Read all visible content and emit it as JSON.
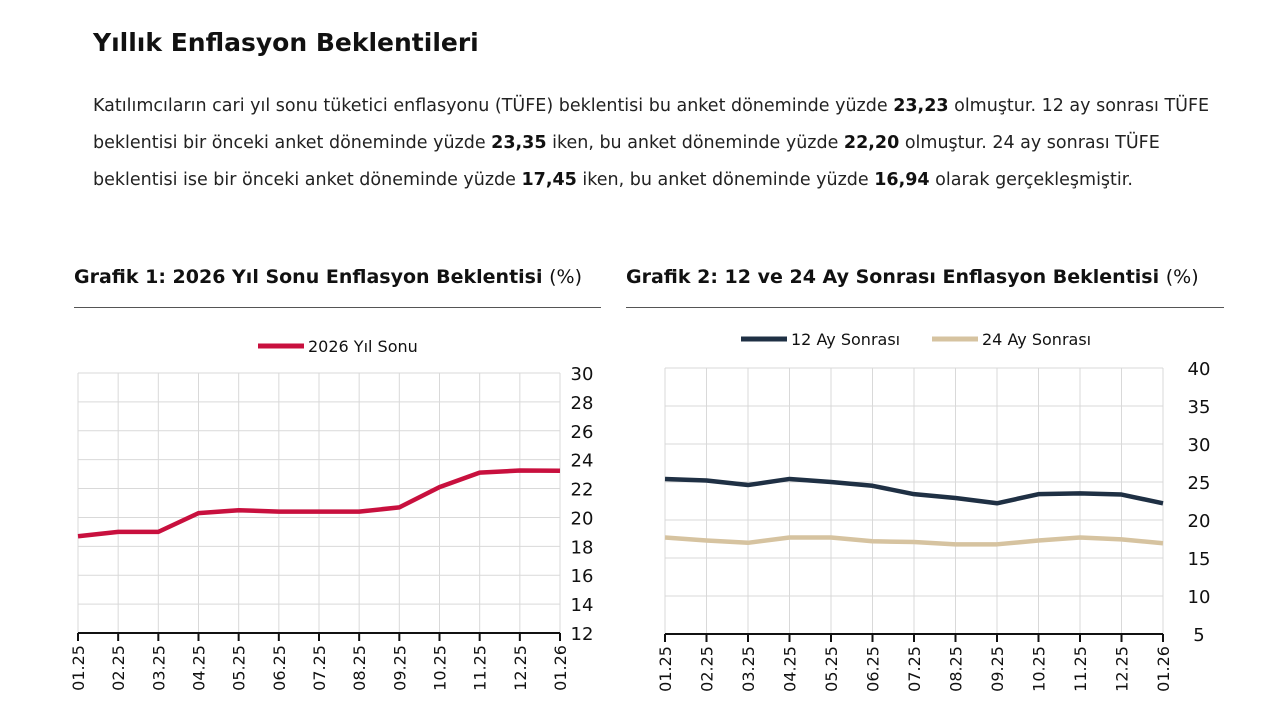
{
  "title": "Yıllık Enflasyon Beklentileri",
  "paragraph": [
    {
      "t": "Katılımcıların cari yıl sonu tüketici enflasyonu (TÜFE) beklentisi bu anket döneminde yüzde "
    },
    {
      "b": "23,23"
    },
    {
      "t": " olmuştur. 12 ay sonrası TÜFE beklentisi bir önceki anket döneminde yüzde "
    },
    {
      "b": "23,35"
    },
    {
      "t": " iken, bu anket döneminde yüzde "
    },
    {
      "b": "22,20"
    },
    {
      "t": " olmuştur. 24 ay sonrası TÜFE beklentisi ise bir önceki anket döneminde yüzde "
    },
    {
      "b": "17,45"
    },
    {
      "t": " iken, bu anket döneminde yüzde "
    },
    {
      "b": "16,94"
    },
    {
      "t": " olarak gerçekleşmiştir."
    }
  ],
  "chart_data": [
    {
      "type": "line",
      "title": "Grafik 1: 2026 Yıl Sonu Enflasyon Beklentisi",
      "unit": "(%)",
      "categories": [
        "01.25",
        "02.25",
        "03.25",
        "04.25",
        "05.25",
        "06.25",
        "07.25",
        "08.25",
        "09.25",
        "10.25",
        "11.25",
        "12.25",
        "01.26"
      ],
      "ylim": [
        12,
        30
      ],
      "yticks": [
        12,
        14,
        16,
        18,
        20,
        22,
        24,
        26,
        28,
        30
      ],
      "grid": true,
      "legend": "top",
      "series": [
        {
          "name": "2026 Yıl Sonu",
          "color": "#c8103e",
          "values": [
            18.7,
            19.0,
            19.0,
            20.3,
            20.5,
            20.4,
            20.4,
            20.4,
            20.7,
            22.1,
            23.1,
            23.25,
            23.23
          ]
        }
      ]
    },
    {
      "type": "line",
      "title": "Grafik 2: 12 ve 24 Ay Sonrası Enflasyon Beklentisi",
      "unit": "(%)",
      "categories": [
        "01.25",
        "02.25",
        "03.25",
        "04.25",
        "05.25",
        "06.25",
        "07.25",
        "08.25",
        "09.25",
        "10.25",
        "11.25",
        "12.25",
        "01.26"
      ],
      "ylim": [
        5,
        40
      ],
      "yticks": [
        5,
        10,
        15,
        20,
        25,
        30,
        35,
        40
      ],
      "grid": true,
      "legend": "top",
      "series": [
        {
          "name": "12 Ay Sonrası",
          "color": "#1f3044",
          "values": [
            25.4,
            25.2,
            24.6,
            25.4,
            25.0,
            24.5,
            23.4,
            22.9,
            22.2,
            23.4,
            23.5,
            23.35,
            22.2
          ]
        },
        {
          "name": "24 Ay Sonrası",
          "color": "#d6c3a0",
          "values": [
            17.7,
            17.3,
            17.0,
            17.7,
            17.7,
            17.2,
            17.1,
            16.8,
            16.8,
            17.3,
            17.7,
            17.45,
            16.94
          ]
        }
      ]
    }
  ]
}
